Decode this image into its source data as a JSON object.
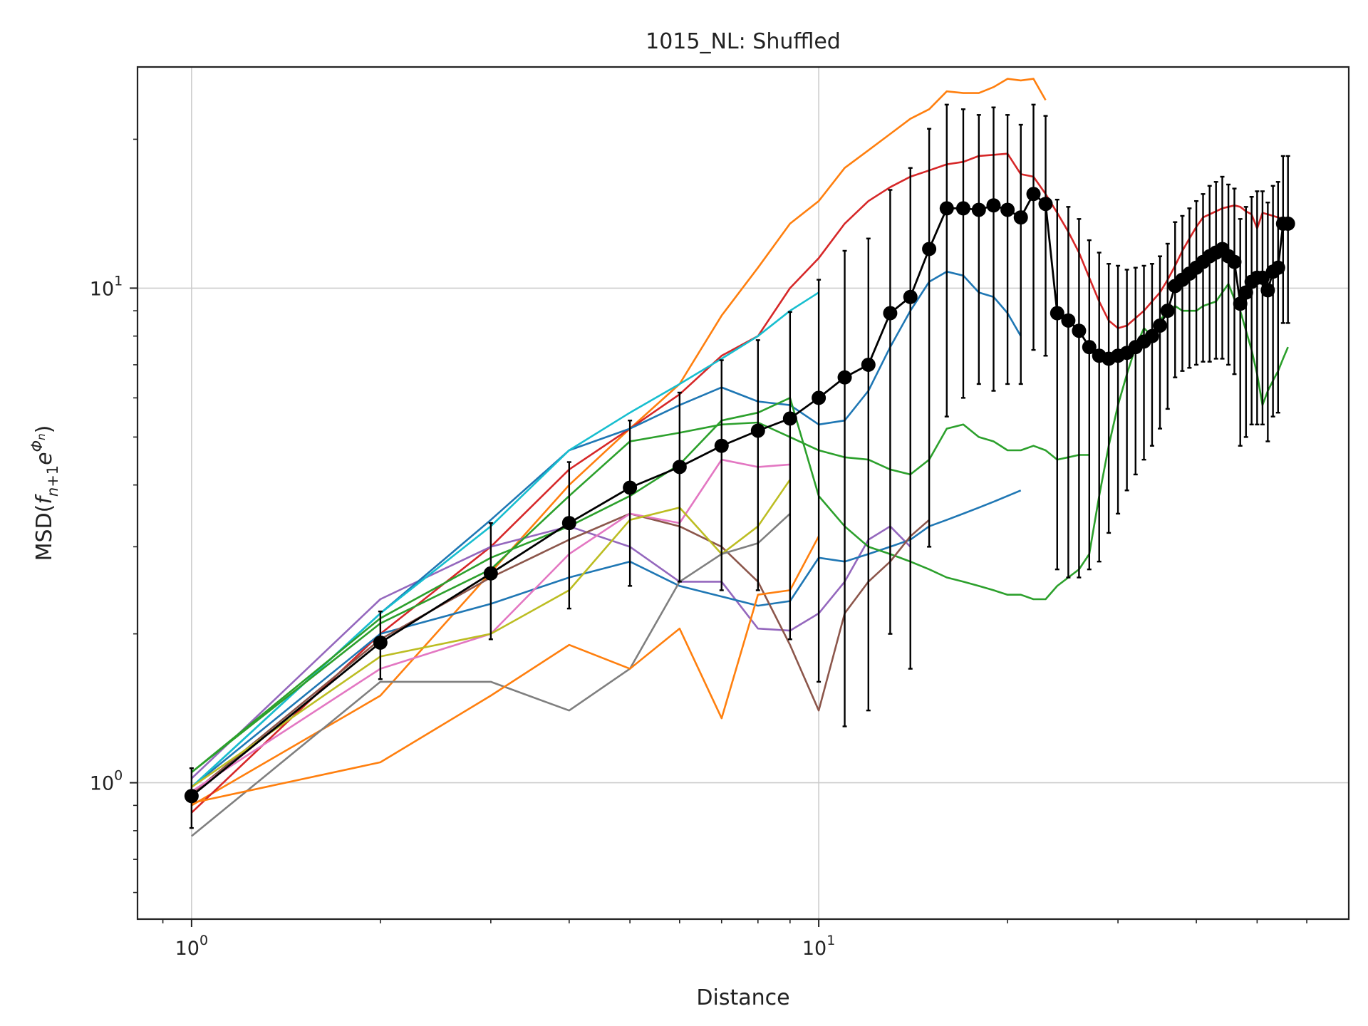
{
  "chart_data": {
    "type": "line",
    "title": "1015_NL: Shuffled",
    "xlabel": "Distance",
    "ylabel": "MSD(f_{n+1}e^{Φn})",
    "xscale": "log",
    "yscale": "log",
    "xlim": [
      0.82,
      70
    ],
    "ylim": [
      0.53,
      28
    ],
    "grid": true,
    "x_ticks": [
      {
        "value": 1,
        "base": "10",
        "exp": "0"
      },
      {
        "value": 10,
        "base": "10",
        "exp": "1"
      }
    ],
    "y_ticks": [
      {
        "value": 1,
        "base": "10",
        "exp": "0"
      },
      {
        "value": 10,
        "base": "10",
        "exp": "1"
      }
    ],
    "series": [
      {
        "color": "#ff7f0e",
        "x": [
          1,
          2,
          4,
          5,
          6,
          7,
          8,
          9,
          10,
          11,
          12,
          13,
          14,
          15,
          16,
          17,
          18,
          19,
          20,
          21,
          22,
          23
        ],
        "y": [
          0.9,
          1.5,
          4,
          5.2,
          6.4,
          8.8,
          11,
          13.5,
          15,
          17.5,
          19,
          20.5,
          22,
          23,
          25,
          24.8,
          24.8,
          25.5,
          26.5,
          26.3,
          26.5,
          24
        ]
      },
      {
        "color": "#d62728",
        "x": [
          1,
          2,
          3,
          4,
          5,
          6,
          7,
          8,
          9,
          10,
          11,
          12,
          13,
          14,
          15,
          16,
          17,
          18,
          19,
          20,
          21,
          22,
          23,
          24,
          25,
          26,
          27,
          28,
          29,
          30,
          31,
          32,
          33,
          34,
          35,
          36,
          37,
          38,
          39,
          40,
          41,
          42,
          43,
          44,
          45,
          46,
          47,
          48,
          49,
          50,
          51,
          52,
          53,
          54,
          55,
          56
        ],
        "y": [
          0.87,
          2.0,
          3.0,
          4.3,
          5.2,
          6.1,
          7.3,
          8.0,
          10.0,
          11.5,
          13.5,
          15,
          16,
          16.8,
          17.3,
          17.8,
          18,
          18.5,
          18.6,
          18.7,
          17,
          16.8,
          15.5,
          14.2,
          13,
          11.8,
          10.5,
          9.4,
          8.6,
          8.3,
          8.4,
          8.7,
          9.0,
          9.4,
          9.8,
          10.4,
          11.1,
          11.9,
          12.6,
          13.3,
          13.9,
          14.1,
          14.3,
          14.5,
          14.6,
          14.7,
          14.6,
          14.3,
          14.1,
          13.2,
          14.2,
          14.1,
          14.0,
          13.9,
          13.8,
          13.8
        ]
      },
      {
        "color": "#9467bd",
        "x": [
          1,
          2,
          3,
          4,
          5,
          6,
          7,
          8,
          9,
          10,
          11,
          12,
          13,
          14
        ],
        "y": [
          1.02,
          2.35,
          3.0,
          3.3,
          3.0,
          2.55,
          2.55,
          2.05,
          2.03,
          2.2,
          2.55,
          3.1,
          3.3,
          3.0
        ]
      },
      {
        "color": "#1f77b4",
        "x": [
          1,
          2,
          3,
          4,
          5,
          6,
          7,
          8,
          9,
          10,
          11,
          12,
          13,
          14,
          15,
          16,
          17,
          18,
          19,
          20,
          21
        ],
        "y": [
          0.98,
          2.0,
          2.3,
          2.6,
          2.8,
          2.5,
          2.38,
          2.28,
          2.33,
          2.85,
          2.8,
          2.9,
          3.0,
          3.1,
          3.3,
          3.4,
          3.5,
          3.6,
          3.7,
          3.8,
          3.9
        ]
      },
      {
        "color": "#1f77b4",
        "x": [
          1,
          2,
          3,
          4,
          5,
          6,
          7,
          8,
          9,
          10,
          11,
          12,
          13,
          14,
          15,
          16,
          17,
          18,
          19,
          20,
          21
        ],
        "y": [
          0.98,
          2.2,
          3.4,
          4.7,
          5.2,
          5.8,
          6.3,
          5.9,
          5.8,
          5.3,
          5.4,
          6.2,
          7.6,
          9.0,
          10.3,
          10.8,
          10.6,
          9.8,
          9.6,
          8.9,
          8.0
        ]
      },
      {
        "color": "#17becf",
        "x": [
          1,
          2,
          3,
          4,
          5,
          6,
          7,
          8,
          9,
          10
        ],
        "y": [
          0.98,
          2.2,
          3.3,
          4.7,
          5.6,
          6.4,
          7.2,
          8.0,
          9.0,
          9.8
        ]
      },
      {
        "color": "#2ca02c",
        "x": [
          1,
          2,
          3,
          4,
          5,
          6,
          7,
          8,
          9,
          10,
          11,
          12,
          13,
          14,
          15,
          16,
          17,
          18,
          19,
          20,
          21,
          22,
          23,
          24,
          25,
          26,
          27,
          28,
          29,
          30,
          31,
          32,
          33,
          34,
          35,
          36,
          37,
          38,
          39,
          40,
          41,
          42,
          43,
          44,
          45,
          46,
          47,
          48,
          49,
          50,
          51,
          52,
          53,
          54,
          55,
          56
        ],
        "y": [
          1.05,
          2.15,
          2.85,
          3.3,
          3.8,
          4.4,
          5.4,
          5.6,
          6.0,
          3.8,
          3.3,
          3.0,
          2.9,
          2.8,
          2.7,
          2.6,
          2.55,
          2.5,
          2.45,
          2.4,
          2.4,
          2.35,
          2.35,
          2.5,
          2.6,
          2.7,
          2.9,
          3.8,
          4.8,
          5.8,
          6.7,
          7.6,
          8.3,
          8.0,
          8.6,
          9.0,
          9.2,
          9.0,
          9.0,
          9.0,
          9.2,
          9.3,
          9.4,
          9.8,
          10.2,
          9.5,
          9.0,
          8.2,
          7.5,
          6.7,
          5.8,
          6.2,
          6.5,
          6.8,
          7.2,
          7.6
        ]
      },
      {
        "color": "#2ca02c",
        "x": [
          1,
          2,
          3,
          4,
          5,
          6,
          7,
          8,
          9,
          10,
          11,
          12,
          13,
          14,
          15,
          16,
          17,
          18,
          19,
          20,
          21,
          22,
          23,
          24,
          25,
          26,
          27
        ],
        "y": [
          1.05,
          2.1,
          2.7,
          3.8,
          4.9,
          5.1,
          5.3,
          5.35,
          5.0,
          4.7,
          4.55,
          4.5,
          4.3,
          4.2,
          4.5,
          5.2,
          5.3,
          5.0,
          4.9,
          4.7,
          4.7,
          4.8,
          4.7,
          4.5,
          4.55,
          4.6,
          4.6
        ]
      },
      {
        "color": "#8c564b",
        "x": [
          1,
          2,
          3,
          4,
          5,
          6,
          7,
          8,
          9,
          10,
          11,
          12,
          13,
          14,
          15
        ],
        "y": [
          0.95,
          1.95,
          2.6,
          3.1,
          3.5,
          3.3,
          3.0,
          2.55,
          1.9,
          1.4,
          2.2,
          2.55,
          2.8,
          3.15,
          3.4
        ]
      },
      {
        "color": "#e377c2",
        "x": [
          1,
          2,
          3,
          4,
          5,
          6,
          7,
          8,
          9
        ],
        "y": [
          0.96,
          1.7,
          2.0,
          2.9,
          3.5,
          3.35,
          4.5,
          4.35,
          4.4
        ]
      },
      {
        "color": "#bcbd22",
        "x": [
          1,
          2,
          3,
          4,
          5,
          6,
          7,
          8,
          9
        ],
        "y": [
          0.98,
          1.8,
          2.0,
          2.45,
          3.4,
          3.6,
          2.9,
          3.3,
          4.1
        ]
      },
      {
        "color": "#7f7f7f",
        "x": [
          1,
          2,
          3,
          4,
          5,
          6,
          7,
          8,
          9
        ],
        "y": [
          0.78,
          1.6,
          1.6,
          1.4,
          1.7,
          2.55,
          2.9,
          3.05,
          3.5
        ]
      },
      {
        "color": "#ff7f0e",
        "x": [
          1,
          2,
          3,
          4,
          5,
          6,
          7,
          8,
          9,
          10
        ],
        "y": [
          0.91,
          1.1,
          1.5,
          1.9,
          1.7,
          2.05,
          1.35,
          2.4,
          2.45,
          3.15
        ]
      }
    ],
    "mean": {
      "color": "#000000",
      "x": [
        1,
        2,
        3,
        4,
        5,
        6,
        7,
        8,
        9,
        10,
        11,
        12,
        13,
        14,
        15,
        16,
        17,
        18,
        19,
        20,
        21,
        22,
        23,
        24,
        25,
        26,
        27,
        28,
        29,
        30,
        31,
        32,
        33,
        34,
        35,
        36,
        37,
        38,
        39,
        40,
        41,
        42,
        43,
        44,
        45,
        46,
        47,
        48,
        49,
        50,
        51,
        52,
        53,
        54,
        55,
        56
      ],
      "y": [
        0.94,
        1.92,
        2.65,
        3.35,
        3.95,
        4.35,
        4.8,
        5.15,
        5.45,
        6.0,
        6.6,
        7.0,
        8.9,
        9.6,
        12.0,
        14.5,
        14.5,
        14.4,
        14.7,
        14.4,
        13.9,
        15.5,
        14.8,
        8.9,
        8.6,
        8.2,
        7.6,
        7.3,
        7.2,
        7.3,
        7.4,
        7.6,
        7.8,
        8.0,
        8.4,
        9.0,
        10.1,
        10.4,
        10.7,
        11.0,
        11.3,
        11.6,
        11.8,
        12.0,
        11.6,
        11.3,
        9.3,
        9.8,
        10.3,
        10.5,
        10.5,
        9.9,
        10.8,
        11.0,
        13.5,
        13.5
      ],
      "err": [
        0.13,
        0.3,
        0.7,
        1.1,
        1.45,
        1.8,
        2.35,
        2.7,
        3.5,
        4.4,
        5.3,
        5.6,
        6.9,
        7.9,
        9.0,
        9.0,
        8.5,
        8.0,
        8.5,
        8.0,
        7.5,
        8.0,
        7.5,
        6.2,
        6.0,
        5.6,
        4.9,
        4.5,
        4.0,
        3.8,
        3.5,
        3.4,
        3.3,
        3.2,
        3.2,
        3.3,
        3.5,
        3.6,
        3.8,
        4.0,
        4.2,
        4.5,
        4.6,
        4.8,
        4.6,
        4.6,
        4.5,
        4.8,
        5.0,
        5.2,
        5.2,
        5.0,
        5.3,
        5.4,
        5.0,
        5.0
      ]
    }
  }
}
